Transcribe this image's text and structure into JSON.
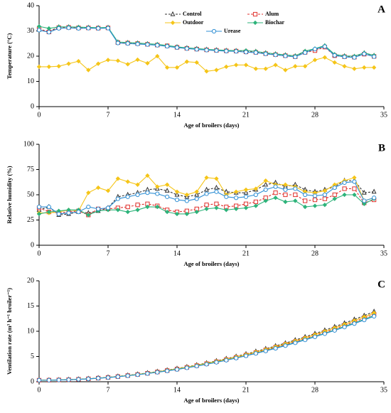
{
  "chart_data": [
    {
      "type": "line",
      "panel": "A",
      "xlabel": "Age of broilers (days)",
      "ylabel": "Temperature (°C)",
      "legend": "top center",
      "x": [
        0,
        1,
        2,
        3,
        4,
        5,
        6,
        7,
        8,
        9,
        10,
        11,
        12,
        13,
        14,
        15,
        16,
        17,
        18,
        19,
        20,
        21,
        22,
        23,
        24,
        25,
        26,
        27,
        28,
        29,
        30,
        31,
        32,
        33,
        34
      ],
      "xlim": [
        0,
        35
      ],
      "xticks": [
        0,
        7,
        14,
        21,
        28,
        35
      ],
      "ylim": [
        0,
        40
      ],
      "yticks": [
        0,
        10,
        20,
        30,
        40
      ],
      "series": [
        {
          "name": "Control",
          "color": "#333333",
          "marker": "triangle",
          "dash": true,
          "values": [
            30.5,
            29.8,
            31.5,
            31.5,
            31.3,
            31.3,
            31.2,
            31.3,
            25.5,
            25.3,
            25.1,
            24.8,
            24.5,
            24.0,
            23.6,
            23.2,
            22.9,
            22.6,
            22.4,
            22.2,
            22.1,
            22.0,
            21.8,
            21.2,
            20.8,
            20.4,
            20.0,
            21.8,
            22.6,
            24.0,
            20.5,
            20.0,
            19.8,
            21.2,
            20.2
          ]
        },
        {
          "name": "Alum",
          "color": "#e0312d",
          "marker": "square",
          "dash": true,
          "values": [
            30.8,
            29.6,
            31.3,
            31.4,
            31.2,
            31.2,
            31.1,
            31.2,
            25.4,
            25.2,
            25.0,
            24.7,
            24.4,
            24.1,
            23.5,
            23.1,
            22.8,
            22.5,
            22.3,
            22.1,
            22.0,
            21.7,
            21.5,
            21.0,
            20.6,
            20.2,
            19.8,
            21.5,
            22.2,
            23.6,
            20.2,
            19.8,
            19.6,
            20.8,
            19.9
          ]
        },
        {
          "name": "Outdoor",
          "color": "#f5c518",
          "marker": "diamond",
          "dash": false,
          "values": [
            15.8,
            15.8,
            16.0,
            17.0,
            18.0,
            14.5,
            17.0,
            18.5,
            18.2,
            16.8,
            18.6,
            17.2,
            20.0,
            15.5,
            15.5,
            17.8,
            17.5,
            14.0,
            14.5,
            15.8,
            16.5,
            16.5,
            15.0,
            15.0,
            16.5,
            14.5,
            16.0,
            16.0,
            18.5,
            19.5,
            17.5,
            16.0,
            15.0,
            15.5,
            15.5
          ]
        },
        {
          "name": "Biochar",
          "color": "#2db37a",
          "marker": "diamond",
          "dash": false,
          "values": [
            31.8,
            31.0,
            31.6,
            31.6,
            31.5,
            31.4,
            31.3,
            31.4,
            25.6,
            25.4,
            25.2,
            24.9,
            24.7,
            24.2,
            23.7,
            23.3,
            23.0,
            22.7,
            22.5,
            22.3,
            22.2,
            22.2,
            21.9,
            21.3,
            20.9,
            20.5,
            20.1,
            22.0,
            23.0,
            24.2,
            20.7,
            20.1,
            20.0,
            21.3,
            20.3
          ]
        },
        {
          "name": "Urease",
          "color": "#2f8fd4",
          "marker": "circle",
          "dash": false,
          "values": [
            30.3,
            29.5,
            31.0,
            31.2,
            31.0,
            31.1,
            31.0,
            31.1,
            25.2,
            25.0,
            24.8,
            24.6,
            24.3,
            23.9,
            23.4,
            23.0,
            22.7,
            22.4,
            22.2,
            22.0,
            21.9,
            21.6,
            21.4,
            20.9,
            20.5,
            20.1,
            19.7,
            21.4,
            22.8,
            23.8,
            20.3,
            19.7,
            19.5,
            20.9,
            19.8
          ]
        }
      ]
    },
    {
      "type": "line",
      "panel": "B",
      "xlabel": "Age of broilers (days)",
      "ylabel": "Relative humidity (%)",
      "x": [
        0,
        1,
        2,
        3,
        4,
        5,
        6,
        7,
        8,
        9,
        10,
        11,
        12,
        13,
        14,
        15,
        16,
        17,
        18,
        19,
        20,
        21,
        22,
        23,
        24,
        25,
        26,
        27,
        28,
        29,
        30,
        31,
        32,
        33,
        34
      ],
      "xlim": [
        0,
        35
      ],
      "xticks": [
        0,
        7,
        14,
        21,
        28,
        35
      ],
      "ylim": [
        0,
        100
      ],
      "yticks": [
        0,
        25,
        50,
        75,
        100
      ],
      "series": [
        {
          "color": "#333333",
          "marker": "triangle",
          "dash": true,
          "values": [
            35,
            38,
            30,
            31,
            33,
            32,
            34,
            37,
            48,
            50,
            52,
            55,
            56,
            54,
            50,
            48,
            50,
            55,
            57,
            53,
            52,
            52,
            55,
            60,
            62,
            58,
            60,
            55,
            53,
            55,
            58,
            64,
            64,
            52,
            53
          ]
        },
        {
          "color": "#e0312d",
          "marker": "square",
          "dash": true,
          "values": [
            37,
            33,
            32,
            33,
            34,
            30,
            36,
            36,
            37,
            38,
            40,
            41,
            39,
            35,
            33,
            34,
            36,
            40,
            41,
            38,
            39,
            41,
            43,
            47,
            52,
            50,
            50,
            44,
            45,
            46,
            50,
            56,
            56,
            42,
            45
          ]
        },
        {
          "color": "#f5c518",
          "marker": "diamond",
          "dash": false,
          "values": [
            32,
            32,
            33,
            35,
            34,
            52,
            57,
            54,
            66,
            63,
            60,
            69,
            58,
            60,
            53,
            50,
            53,
            67,
            66,
            50,
            53,
            55,
            56,
            64,
            60,
            60,
            58,
            53,
            52,
            54,
            60,
            64,
            67,
            44,
            47
          ]
        },
        {
          "color": "#2db37a",
          "marker": "diamond",
          "dash": false,
          "values": [
            31,
            33,
            34,
            35,
            35,
            30,
            34,
            35,
            35,
            33,
            35,
            38,
            38,
            33,
            31,
            31,
            33,
            36,
            37,
            35,
            36,
            37,
            39,
            44,
            47,
            43,
            44,
            38,
            39,
            40,
            46,
            50,
            50,
            41,
            46
          ]
        },
        {
          "color": "#2f8fd4",
          "marker": "circle",
          "dash": false,
          "values": [
            38,
            38,
            31,
            32,
            33,
            38,
            36,
            37,
            46,
            48,
            50,
            52,
            51,
            48,
            45,
            44,
            46,
            51,
            53,
            48,
            47,
            48,
            50,
            55,
            58,
            55,
            56,
            50,
            49,
            50,
            57,
            62,
            63,
            44,
            47
          ]
        }
      ]
    },
    {
      "type": "line",
      "panel": "C",
      "xlabel": "Age of broilers (days)",
      "ylabel": "Ventilation rate (m³ h⁻¹ broiler⁻¹)",
      "x": [
        0,
        1,
        2,
        3,
        4,
        5,
        6,
        7,
        8,
        9,
        10,
        11,
        12,
        13,
        14,
        15,
        16,
        17,
        18,
        19,
        20,
        21,
        22,
        23,
        24,
        25,
        26,
        27,
        28,
        29,
        30,
        31,
        32,
        33,
        34
      ],
      "xlim": [
        0,
        35
      ],
      "xticks": [
        0,
        7,
        14,
        21,
        28,
        35
      ],
      "ylim": [
        0,
        20
      ],
      "yticks": [
        0,
        5,
        10,
        15,
        20
      ],
      "series": [
        {
          "color": "#333333",
          "marker": "triangle",
          "dash": true,
          "values": [
            0.3,
            0.32,
            0.36,
            0.42,
            0.5,
            0.6,
            0.74,
            0.88,
            1.06,
            1.27,
            1.49,
            1.74,
            2.01,
            2.3,
            2.61,
            2.95,
            3.32,
            3.71,
            4.12,
            4.56,
            5.01,
            5.49,
            6.0,
            6.53,
            7.08,
            7.65,
            8.26,
            8.88,
            9.53,
            10.19,
            10.89,
            11.61,
            12.34,
            13.11,
            13.89
          ]
        },
        {
          "color": "#e0312d",
          "marker": "square",
          "dash": true,
          "values": [
            0.3,
            0.31,
            0.35,
            0.4,
            0.48,
            0.58,
            0.71,
            0.85,
            1.02,
            1.22,
            1.43,
            1.67,
            1.93,
            2.21,
            2.51,
            2.84,
            3.19,
            3.57,
            3.96,
            4.38,
            4.82,
            5.28,
            5.77,
            6.28,
            6.81,
            7.36,
            7.94,
            8.54,
            9.16,
            9.8,
            10.47,
            11.16,
            11.87,
            12.61,
            13.36
          ]
        },
        {
          "color": "#f5c518",
          "marker": "diamond",
          "dash": false,
          "values": [
            0.31,
            0.32,
            0.36,
            0.41,
            0.49,
            0.59,
            0.72,
            0.87,
            1.04,
            1.24,
            1.46,
            1.7,
            1.97,
            2.25,
            2.56,
            2.9,
            3.25,
            3.64,
            4.04,
            4.47,
            4.92,
            5.39,
            5.89,
            6.41,
            6.95,
            7.51,
            8.1,
            8.71,
            9.34,
            10.0,
            10.68,
            11.38,
            12.11,
            12.86,
            13.63
          ]
        },
        {
          "color": "#2db37a",
          "marker": "diamond",
          "dash": false,
          "values": [
            0.3,
            0.3,
            0.34,
            0.39,
            0.47,
            0.57,
            0.7,
            0.83,
            1.0,
            1.2,
            1.4,
            1.64,
            1.89,
            2.17,
            2.46,
            2.78,
            3.13,
            3.5,
            3.88,
            4.29,
            4.72,
            5.17,
            5.65,
            6.15,
            6.67,
            7.21,
            7.78,
            8.37,
            8.98,
            9.6,
            10.26,
            10.94,
            11.63,
            12.36,
            13.09
          ]
        },
        {
          "color": "#2f8fd4",
          "marker": "circle",
          "dash": false,
          "values": [
            0.3,
            0.3,
            0.34,
            0.39,
            0.47,
            0.56,
            0.69,
            0.82,
            0.99,
            1.18,
            1.39,
            1.62,
            1.87,
            2.14,
            2.43,
            2.75,
            3.09,
            3.46,
            3.84,
            4.25,
            4.68,
            5.12,
            5.6,
            6.09,
            6.61,
            7.14,
            7.7,
            8.28,
            8.89,
            9.51,
            10.16,
            10.83,
            11.51,
            12.23,
            12.96
          ]
        }
      ]
    }
  ]
}
